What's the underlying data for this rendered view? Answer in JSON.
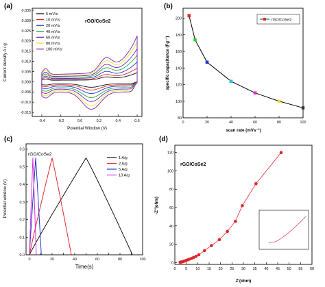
{
  "chart_data": [
    {
      "type": "line",
      "panel": "(a)",
      "label": "rGO/CoSe2",
      "xlabel": "Potential Window (V)",
      "ylabel": "Current density A / g",
      "xlim": [
        -0.5,
        0.65
      ],
      "ylim": [
        -0.017,
        0.036
      ],
      "xticks": [
        -0.4,
        -0.2,
        0.0,
        0.2,
        0.4,
        0.6
      ],
      "xtick_labels": [
        "-0.4",
        "-0.2",
        "0.0",
        "0.2",
        "0.4",
        "0.6"
      ],
      "yticks": [
        -0.015,
        -0.01,
        -0.005,
        0.0,
        0.005,
        0.01,
        0.015,
        0.02,
        0.025,
        0.03,
        0.035
      ],
      "ytick_labels": [
        "-0.015",
        "-0.010",
        "-0.005",
        "0.000",
        "0.005",
        "0.010",
        "0.015",
        "0.020",
        "0.025",
        "0.030",
        "0.035"
      ],
      "legend_position": "top-left",
      "series": [
        {
          "name": "5 mV/s",
          "color": "#111111",
          "scale": 0.2
        },
        {
          "name": "10 mV/s",
          "color": "#e0262b",
          "scale": 0.3
        },
        {
          "name": "20 mV/s",
          "color": "#2233cc",
          "scale": 0.43
        },
        {
          "name": "40 mV/s",
          "color": "#18a83a",
          "scale": 0.58
        },
        {
          "name": "60 mV/s",
          "color": "#7a1fb0",
          "scale": 0.72
        },
        {
          "name": "80 mV/s",
          "color": "#e6e02a",
          "scale": 0.87
        },
        {
          "name": "100 mV/s",
          "color": "#7a1fb0",
          "scale": 1.0
        }
      ]
    },
    {
      "type": "line",
      "panel": "(b)",
      "xlabel": "scan rate (mVs⁻¹)",
      "ylabel": "specific capacitance (Fg⁻¹)",
      "xlim": [
        0,
        100
      ],
      "ylim": [
        80,
        212
      ],
      "xticks": [
        0,
        20,
        40,
        60,
        80,
        100
      ],
      "xtick_labels": [
        "0",
        "20",
        "40",
        "60",
        "80",
        "100"
      ],
      "yticks": [
        80,
        100,
        120,
        140,
        160,
        180,
        200
      ],
      "ytick_labels": [
        "80",
        "100",
        "120",
        "140",
        "160",
        "180",
        "200"
      ],
      "legend_position": "top-right",
      "series": [
        {
          "name": "rGO/CoSe2",
          "line_color": "#000000"
        }
      ],
      "x": [
        5,
        10,
        20,
        40,
        60,
        80,
        100
      ],
      "y": [
        203,
        174,
        147,
        124,
        110,
        100,
        92
      ],
      "point_colors": [
        "#e0262b",
        "#2fd12f",
        "#2233cc",
        "#19c8e0",
        "#d62fd6",
        "#e8e02a",
        "#555555"
      ]
    },
    {
      "type": "line",
      "panel": "(c)",
      "label": "rGO/CoSe2",
      "xlabel": "Time(s)",
      "ylabel": "Potential window (V)",
      "xlim": [
        -3,
        100
      ],
      "ylim": [
        0,
        0.63
      ],
      "xticks": [
        0,
        10,
        20,
        30,
        40,
        50,
        60,
        70,
        80,
        90,
        100
      ],
      "xtick_labels": [
        "0",
        "",
        "20",
        "",
        "40",
        "",
        "60",
        "",
        "80",
        "",
        "100"
      ],
      "yticks": [
        0.0,
        0.1,
        0.2,
        0.3,
        0.4,
        0.5,
        0.6
      ],
      "ytick_labels": [
        "0.0",
        "0.1",
        "0.2",
        "0.3",
        "0.4",
        "0.5",
        "0.6"
      ],
      "legend_position": "top-right",
      "series": [
        {
          "name": "1 A/g",
          "color": "#111111",
          "peak_t": 50,
          "end_t": 91
        },
        {
          "name": "2 A/g",
          "color": "#e0262b",
          "peak_t": 20,
          "end_t": 37
        },
        {
          "name": "5 A/g",
          "color": "#2233cc",
          "peak_t": 5.5,
          "end_t": 10.5
        },
        {
          "name": "10 A/g",
          "color": "#d62fd6",
          "peak_t": 3,
          "end_t": 6
        }
      ]
    },
    {
      "type": "scatter",
      "panel": "(d)",
      "label": "rGO/CoSe2",
      "xlabel": "Z'(ohm)",
      "ylabel": "-Z''(ohm)",
      "xlim": [
        0,
        60
      ],
      "ylim": [
        -2,
        128
      ],
      "xticks": [
        0,
        5,
        10,
        15,
        20,
        25,
        30,
        35,
        40,
        45,
        50,
        55,
        60
      ],
      "xtick_labels": [
        "0",
        "5",
        "10",
        "15",
        "20",
        "25",
        "30",
        "35",
        "40",
        "45",
        "50",
        "55",
        "60"
      ],
      "yticks": [
        0,
        20,
        40,
        60,
        80,
        100,
        120
      ],
      "ytick_labels": [
        "0",
        "20",
        "40",
        "60",
        "80",
        "100",
        "120"
      ],
      "color": "#e0262b",
      "x": [
        2.3,
        2.6,
        3.0,
        3.4,
        3.9,
        4.4,
        5.0,
        5.7,
        6.4,
        7.3,
        8.2,
        9.3,
        10.5,
        13.0,
        16.0,
        19.5,
        23.0,
        26.5,
        29.5,
        35.5,
        46.5
      ],
      "y": [
        0.3,
        0.5,
        0.7,
        1.0,
        1.4,
        1.8,
        2.3,
        3.0,
        3.7,
        4.6,
        5.6,
        6.8,
        8.5,
        13.0,
        18.5,
        25.0,
        34.0,
        45.0,
        62.0,
        86.0,
        120.0
      ],
      "inset": "true"
    }
  ]
}
